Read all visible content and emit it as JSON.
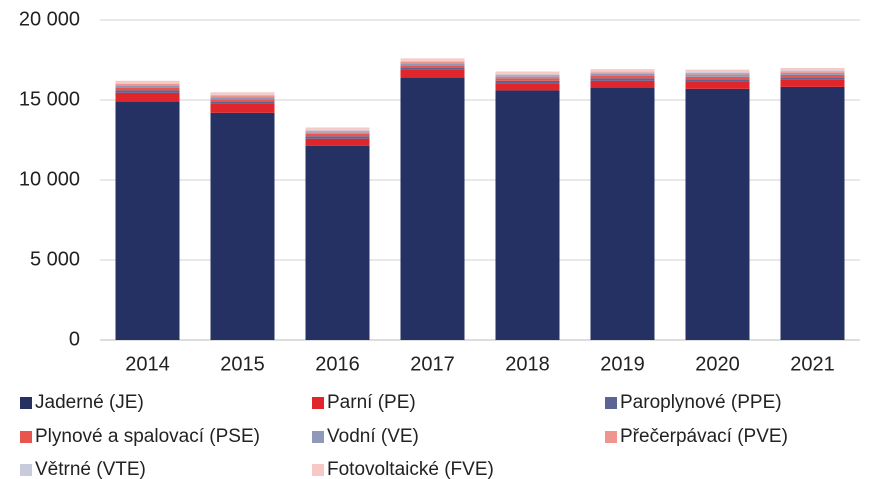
{
  "chart_data": {
    "type": "stacked_bar",
    "categories": [
      "2014",
      "2015",
      "2016",
      "2017",
      "2018",
      "2019",
      "2020",
      "2021"
    ],
    "series": [
      {
        "name": "Jaderné (JE)",
        "color": "#253163",
        "values": [
          14900,
          14200,
          12130,
          16400,
          15600,
          15750,
          15700,
          15820
        ]
      },
      {
        "name": "Parní (PE)",
        "color": "#e0252b",
        "values": [
          550,
          600,
          450,
          500,
          450,
          450,
          450,
          450
        ]
      },
      {
        "name": "Paroplynové (PPE)",
        "color": "#5b6595",
        "values": [
          150,
          100,
          150,
          100,
          150,
          150,
          150,
          150
        ]
      },
      {
        "name": "Plynové a spalovací (PSE)",
        "color": "#e8554e",
        "values": [
          150,
          150,
          150,
          150,
          150,
          150,
          150,
          150
        ]
      },
      {
        "name": "Vodní (VE)",
        "color": "#9099b8",
        "values": [
          150,
          130,
          100,
          150,
          130,
          130,
          150,
          130
        ]
      },
      {
        "name": "Přečerpávací (PVE)",
        "color": "#f0948e",
        "values": [
          100,
          100,
          100,
          100,
          100,
          100,
          100,
          100
        ]
      },
      {
        "name": "Větrné (VTE)",
        "color": "#c8cbdc",
        "values": [
          50,
          50,
          50,
          50,
          50,
          50,
          50,
          50
        ]
      },
      {
        "name": "Fotovoltaické (FVE)",
        "color": "#f7c9c5",
        "values": [
          150,
          150,
          150,
          150,
          150,
          150,
          150,
          150
        ]
      }
    ],
    "ylim": [
      0,
      20000
    ],
    "yticks": [
      0,
      {
        "value": 5000,
        "label": "5 000"
      },
      {
        "value": 10000,
        "label": "10 000"
      },
      {
        "value": 15000,
        "label": "15 000"
      },
      {
        "value": 20000,
        "label": "20 000"
      }
    ],
    "grid": true,
    "legend": "bottom"
  }
}
